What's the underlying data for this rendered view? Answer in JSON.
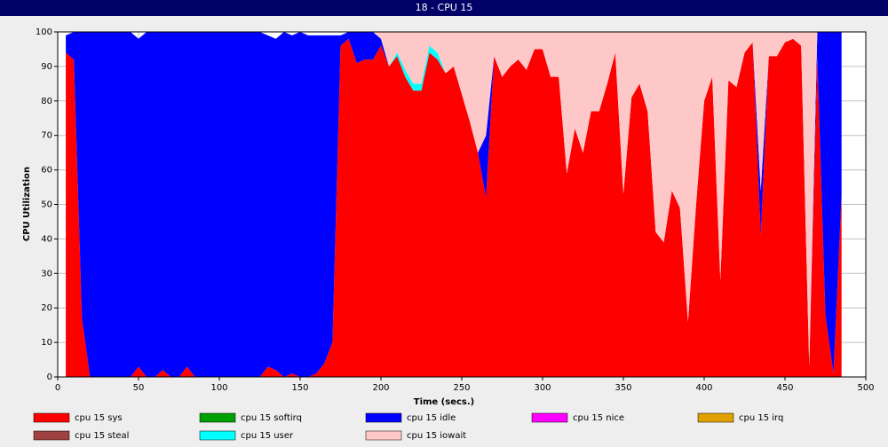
{
  "chart_data": {
    "type": "stacked_area",
    "title": "18 - CPU 15",
    "xlabel": "Time (secs.)",
    "ylabel": "CPU Utilization",
    "x": [
      5,
      10,
      15,
      20,
      25,
      30,
      35,
      40,
      45,
      50,
      55,
      60,
      65,
      70,
      75,
      80,
      85,
      90,
      95,
      100,
      105,
      110,
      115,
      120,
      125,
      130,
      135,
      140,
      145,
      150,
      155,
      160,
      165,
      170,
      175,
      180,
      185,
      190,
      195,
      200,
      205,
      210,
      215,
      220,
      225,
      230,
      235,
      240,
      245,
      250,
      255,
      260,
      265,
      270,
      275,
      280,
      285,
      290,
      295,
      300,
      305,
      310,
      315,
      320,
      325,
      330,
      335,
      340,
      345,
      350,
      355,
      360,
      365,
      370,
      375,
      380,
      385,
      390,
      395,
      400,
      405,
      410,
      415,
      420,
      425,
      430,
      435,
      440,
      445,
      450,
      455,
      460,
      465,
      470,
      475,
      480,
      485
    ],
    "series": [
      {
        "name": "cpu 15 sys",
        "color": "#ff0000",
        "values": [
          94,
          92,
          17,
          0,
          0,
          0,
          0,
          0,
          0,
          3,
          0,
          0,
          2,
          0,
          0,
          3,
          0,
          0,
          0,
          0,
          0,
          0,
          0,
          0,
          0,
          3,
          2,
          0,
          1,
          0,
          0,
          1,
          4,
          10,
          96,
          98,
          91,
          92,
          92,
          96,
          90,
          93,
          87,
          83,
          83,
          94,
          92,
          88,
          90,
          82,
          74,
          65,
          52,
          93,
          87,
          90,
          92,
          89,
          95,
          95,
          87,
          87,
          59,
          72,
          65,
          77,
          77,
          85,
          94,
          53,
          81,
          85,
          77,
          42,
          39,
          54,
          49,
          16,
          50,
          80,
          87,
          28,
          86,
          84,
          94,
          97,
          41,
          93,
          93,
          97,
          98,
          96,
          3,
          93,
          18,
          1,
          53
        ]
      },
      {
        "name": "cpu 15 softirq",
        "color": "#00a000",
        "values": [
          0,
          0,
          0,
          0,
          0,
          0,
          0,
          0,
          0,
          0,
          0,
          0,
          0,
          0,
          0,
          0,
          0,
          0,
          0,
          0,
          0,
          0,
          0,
          0,
          0,
          0,
          0,
          0,
          0,
          0,
          0,
          0,
          0,
          0,
          0,
          0,
          0,
          0,
          0,
          0,
          0,
          0,
          0,
          0,
          0,
          0,
          0,
          0,
          0,
          0,
          0,
          0,
          0,
          0,
          0,
          0,
          0,
          0,
          0,
          0,
          0,
          0,
          0,
          0,
          0,
          0,
          0,
          0,
          0,
          0,
          0,
          0,
          0,
          0,
          0,
          0,
          0,
          0,
          0,
          0,
          0,
          0,
          0,
          0,
          0,
          0,
          0,
          0,
          0,
          0,
          0,
          0,
          0,
          0,
          0,
          0,
          0
        ]
      },
      {
        "name": "cpu 15 idle",
        "color": "#0000ff",
        "values": [
          5,
          8,
          83,
          100,
          100,
          100,
          100,
          100,
          100,
          95,
          100,
          100,
          98,
          100,
          100,
          97,
          100,
          100,
          100,
          100,
          100,
          100,
          100,
          100,
          100,
          96,
          96,
          100,
          98,
          100,
          99,
          98,
          95,
          89,
          3,
          2,
          9,
          8,
          8,
          2,
          0,
          0,
          0,
          0,
          0,
          0,
          0,
          0,
          0,
          0,
          0,
          0,
          18,
          0,
          0,
          0,
          0,
          0,
          0,
          0,
          0,
          0,
          0,
          0,
          0,
          0,
          0,
          0,
          0,
          0,
          0,
          0,
          0,
          0,
          0,
          0,
          0,
          0,
          0,
          0,
          0,
          0,
          0,
          0,
          0,
          0,
          13,
          0,
          0,
          0,
          0,
          0,
          0,
          7,
          82,
          99,
          47
        ]
      },
      {
        "name": "cpu 15 nice",
        "color": "#ff00ff",
        "values": [
          0,
          0,
          0,
          0,
          0,
          0,
          0,
          0,
          0,
          0,
          0,
          0,
          0,
          0,
          0,
          0,
          0,
          0,
          0,
          0,
          0,
          0,
          0,
          0,
          0,
          0,
          0,
          0,
          0,
          0,
          0,
          0,
          0,
          0,
          0,
          0,
          0,
          0,
          0,
          0,
          0,
          0,
          0,
          0,
          0,
          0,
          0,
          0,
          0,
          0,
          0,
          0,
          0,
          0,
          0,
          0,
          0,
          0,
          0,
          0,
          0,
          0,
          0,
          0,
          0,
          0,
          0,
          0,
          0,
          0,
          0,
          0,
          0,
          0,
          0,
          0,
          0,
          0,
          0,
          0,
          0,
          0,
          0,
          0,
          0,
          0,
          0,
          0,
          0,
          0,
          0,
          0,
          0,
          0,
          0,
          0,
          0
        ]
      },
      {
        "name": "cpu 15 irq",
        "color": "#e0a000",
        "values": [
          0,
          0,
          0,
          0,
          0,
          0,
          0,
          0,
          0,
          0,
          0,
          0,
          0,
          0,
          0,
          0,
          0,
          0,
          0,
          0,
          0,
          0,
          0,
          0,
          0,
          0,
          0,
          0,
          0,
          0,
          0,
          0,
          0,
          0,
          0,
          0,
          0,
          0,
          0,
          0,
          0,
          0,
          0,
          0,
          0,
          0,
          0,
          0,
          0,
          0,
          0,
          0,
          0,
          0,
          0,
          0,
          0,
          0,
          0,
          0,
          0,
          0,
          0,
          0,
          0,
          0,
          0,
          0,
          0,
          0,
          0,
          0,
          0,
          0,
          0,
          0,
          0,
          0,
          0,
          0,
          0,
          0,
          0,
          0,
          0,
          0,
          0,
          0,
          0,
          0,
          0,
          0,
          0,
          0,
          0,
          0,
          0
        ]
      },
      {
        "name": "cpu 15 steal",
        "color": "#a04040",
        "values": [
          0,
          0,
          0,
          0,
          0,
          0,
          0,
          0,
          0,
          0,
          0,
          0,
          0,
          0,
          0,
          0,
          0,
          0,
          0,
          0,
          0,
          0,
          0,
          0,
          0,
          0,
          0,
          0,
          0,
          0,
          0,
          0,
          0,
          0,
          0,
          0,
          0,
          0,
          0,
          0,
          0,
          0,
          0,
          0,
          0,
          0,
          0,
          0,
          0,
          0,
          0,
          0,
          0,
          0,
          0,
          0,
          0,
          0,
          0,
          0,
          0,
          0,
          0,
          0,
          0,
          0,
          0,
          0,
          0,
          0,
          0,
          0,
          0,
          0,
          0,
          0,
          0,
          0,
          0,
          0,
          0,
          0,
          0,
          0,
          0,
          0,
          0,
          0,
          0,
          0,
          0,
          0,
          0,
          0,
          0,
          0,
          0
        ]
      },
      {
        "name": "cpu 15 user",
        "color": "#00ffff",
        "values": [
          0,
          0,
          0,
          0,
          0,
          0,
          0,
          0,
          0,
          0,
          0,
          0,
          0,
          0,
          0,
          0,
          0,
          0,
          0,
          0,
          0,
          0,
          0,
          0,
          0,
          0,
          0,
          0,
          0,
          0,
          0,
          0,
          0,
          0,
          0,
          0,
          0,
          0,
          0,
          0,
          0,
          1,
          2,
          2,
          2,
          2,
          2,
          0,
          0,
          0,
          0,
          0,
          0,
          0,
          0,
          0,
          0,
          0,
          0,
          0,
          0,
          0,
          0,
          0,
          0,
          0,
          0,
          0,
          0,
          0,
          0,
          0,
          0,
          0,
          0,
          0,
          0,
          0,
          0,
          0,
          0,
          0,
          0,
          0,
          0,
          0,
          0,
          0,
          0,
          0,
          0,
          0,
          0,
          0,
          0,
          0,
          0
        ]
      },
      {
        "name": "cpu 15 iowait",
        "color": "#ffc8c8",
        "values": [
          0,
          0,
          0,
          0,
          0,
          0,
          0,
          0,
          0,
          0,
          0,
          0,
          0,
          0,
          0,
          0,
          0,
          0,
          0,
          0,
          0,
          0,
          0,
          0,
          0,
          0,
          0,
          0,
          0,
          0,
          0,
          0,
          0,
          0,
          0,
          0,
          0,
          0,
          0,
          2,
          10,
          6,
          11,
          15,
          15,
          4,
          6,
          12,
          10,
          18,
          26,
          35,
          30,
          7,
          13,
          10,
          8,
          11,
          5,
          5,
          13,
          13,
          41,
          28,
          35,
          23,
          23,
          15,
          6,
          47,
          19,
          15,
          23,
          58,
          61,
          46,
          51,
          84,
          50,
          20,
          13,
          72,
          14,
          16,
          6,
          3,
          46,
          7,
          7,
          3,
          2,
          4,
          97,
          0,
          0,
          0,
          0
        ]
      }
    ],
    "xlim": [
      0,
      500
    ],
    "xticks": [
      0,
      50,
      100,
      150,
      200,
      250,
      300,
      350,
      400,
      450,
      500
    ],
    "ylim": [
      0,
      100
    ],
    "yticks": [
      0,
      10,
      20,
      30,
      40,
      50,
      60,
      70,
      80,
      90,
      100
    ],
    "grid": true
  }
}
